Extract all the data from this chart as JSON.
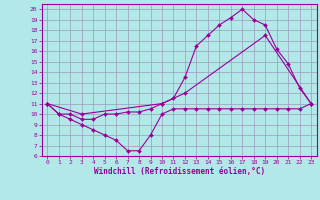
{
  "xlabel": "Windchill (Refroidissement éolien,°C)",
  "xlim": [
    -0.5,
    23.5
  ],
  "ylim": [
    6,
    20.5
  ],
  "xticks": [
    0,
    1,
    2,
    3,
    4,
    5,
    6,
    7,
    8,
    9,
    10,
    11,
    12,
    13,
    14,
    15,
    16,
    17,
    18,
    19,
    20,
    21,
    22,
    23
  ],
  "yticks": [
    6,
    7,
    8,
    9,
    10,
    11,
    12,
    13,
    14,
    15,
    16,
    17,
    18,
    19,
    20
  ],
  "color": "#990099",
  "bg_color": "#b3e8e8",
  "grid_color": "#9999bb",
  "line1_x": [
    0,
    1,
    2,
    3,
    4,
    5,
    6,
    7,
    8,
    9,
    10,
    11,
    12,
    13,
    14,
    15,
    16,
    17,
    18,
    19,
    20,
    21,
    22,
    23
  ],
  "line1_y": [
    11,
    10,
    10,
    9.5,
    9.5,
    10,
    10,
    10.2,
    10.2,
    10.5,
    11,
    11.5,
    13.5,
    16.5,
    17.5,
    18.5,
    19.2,
    20,
    19,
    18.5,
    16.2,
    14.8,
    12.5,
    11
  ],
  "line2_x": [
    0,
    3,
    10,
    12,
    19,
    23
  ],
  "line2_y": [
    11,
    10,
    11,
    12,
    17.5,
    11
  ],
  "line3_x": [
    0,
    1,
    2,
    3,
    4,
    5,
    6,
    7,
    8,
    9,
    10,
    11,
    12,
    13,
    14,
    15,
    16,
    17,
    18,
    19,
    20,
    21,
    22,
    23
  ],
  "line3_y": [
    11,
    10,
    9.5,
    9,
    8.5,
    8,
    7.5,
    6.5,
    6.5,
    8,
    10,
    10.5,
    10.5,
    10.5,
    10.5,
    10.5,
    10.5,
    10.5,
    10.5,
    10.5,
    10.5,
    10.5,
    10.5,
    11
  ]
}
